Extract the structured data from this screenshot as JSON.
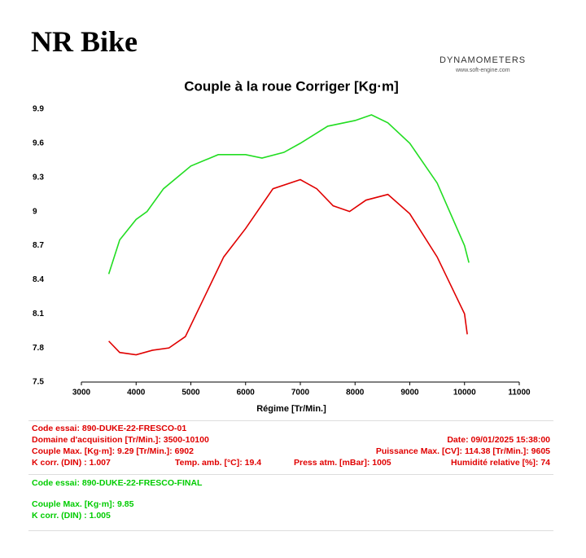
{
  "header": {
    "brand": "NR Bike",
    "logo": "DYNAMOMETERS",
    "website": "www.soft-engine.com"
  },
  "chart_data": {
    "type": "line",
    "title": "Couple à la roue Corriger [Kg·m]",
    "x_label": "Régime [Tr/Min.]",
    "xlim": [
      3000,
      11000
    ],
    "xticks": [
      3000,
      4000,
      5000,
      6000,
      7000,
      8000,
      9000,
      10000,
      11000
    ],
    "ylim": [
      7.5,
      9.9
    ],
    "yticks": [
      7.5,
      7.8,
      8.1,
      8.4,
      8.7,
      9,
      9.3,
      9.6,
      9.9
    ],
    "grid": false,
    "series": [
      {
        "name": "890-DUKE-22-FRESCO-01",
        "color": "#e00000",
        "x": [
          3500,
          3700,
          4000,
          4300,
          4600,
          4900,
          5200,
          5600,
          6000,
          6500,
          7000,
          7300,
          7600,
          7900,
          8200,
          8600,
          9000,
          9500,
          10000,
          10050
        ],
        "values": [
          7.86,
          7.76,
          7.74,
          7.78,
          7.8,
          7.9,
          8.2,
          8.6,
          8.85,
          9.2,
          9.28,
          9.2,
          9.05,
          9.0,
          9.1,
          9.15,
          8.98,
          8.6,
          8.1,
          7.92
        ]
      },
      {
        "name": "890-DUKE-22-FRESCO-FINAL",
        "color": "#22dd22",
        "x": [
          3500,
          3700,
          4000,
          4200,
          4500,
          5000,
          5500,
          6000,
          6300,
          6700,
          7000,
          7500,
          8000,
          8300,
          8600,
          9000,
          9500,
          10000,
          10080
        ],
        "values": [
          8.45,
          8.75,
          8.93,
          9.0,
          9.2,
          9.4,
          9.5,
          9.5,
          9.47,
          9.52,
          9.6,
          9.75,
          9.8,
          9.85,
          9.78,
          9.6,
          9.25,
          8.7,
          8.55
        ]
      }
    ]
  },
  "red_panel": {
    "code": "Code essai: 890-DUKE-22-FRESCO-01",
    "domain": "Domaine d'acquisition [Tr/Min.]: 3500-10100",
    "date": "Date: 09/01/2025  15:38:00",
    "torque": "Couple Max. [Kg·m]: 9.29   [Tr/Min.]: 6902",
    "power": "Puissance Max. [CV]: 114.38   [Tr/Min.]: 9605",
    "kcorr": "K corr. (DIN) : 1.007",
    "temp": "Temp. amb. [°C]: 19.4",
    "press": "Press atm. [mBar]: 1005",
    "humidity": "Humidité relative [%]: 74"
  },
  "green_panel": {
    "code": "Code essai: 890-DUKE-22-FRESCO-FINAL",
    "torque": "Couple Max. [Kg·m]: 9.85",
    "kcorr": "K corr. (DIN) : 1.005"
  }
}
